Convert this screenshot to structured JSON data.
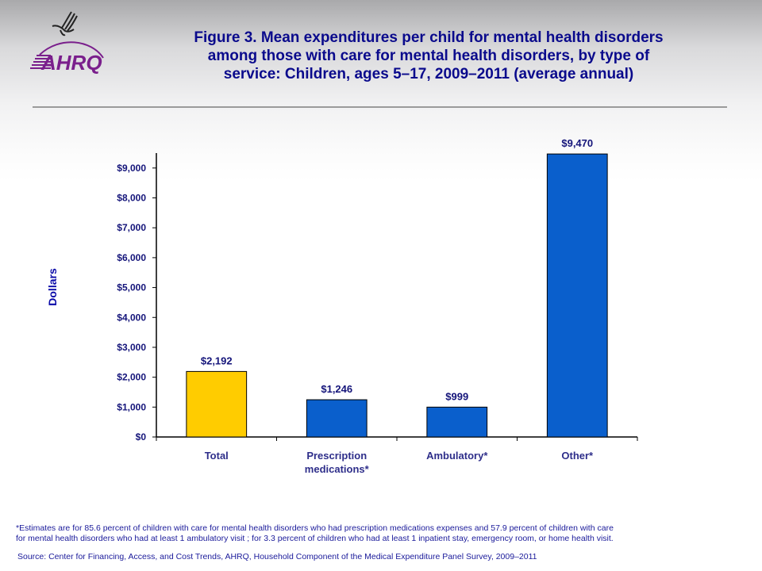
{
  "header": {
    "logo_text": "AHRQ",
    "hhs_icon": "hhs-eagle-icon"
  },
  "title_lines": [
    "Figure 3. Mean expenditures per child for mental health disorders",
    "among those with care for mental health disorders, by type of",
    "service: Children, ages 5–17, 2009–2011 (average annual)"
  ],
  "colors": {
    "title": "#0a0a8c",
    "total_bar": "#ffcc00",
    "service_bar": "#0a5fcc",
    "text": "#14147a"
  },
  "chart_data": {
    "type": "bar",
    "title": "Figure 3. Mean expenditures per child for mental health disorders among those with care for mental health disorders, by type of service: Children, ages 5–17, 2009–2011 (average annual)",
    "xlabel": "",
    "ylabel": "Dollars",
    "ylim": [
      0,
      9500
    ],
    "yticks": [
      0,
      1000,
      2000,
      3000,
      4000,
      5000,
      6000,
      7000,
      8000,
      9000
    ],
    "ytick_labels": [
      "$0",
      "$1,000",
      "$2,000",
      "$3,000",
      "$4,000",
      "$5,000",
      "$6,000",
      "$7,000",
      "$8,000",
      "$9,000"
    ],
    "grid": false,
    "legend": "none",
    "categories": [
      [
        "Total"
      ],
      [
        "Prescription",
        "medications*"
      ],
      [
        "Ambulatory*"
      ],
      [
        "Other*"
      ]
    ],
    "values": [
      2192,
      1246,
      999,
      9470
    ],
    "value_labels": [
      "$2,192",
      "$1,246",
      "$999",
      "$9,470"
    ],
    "bar_colors": [
      "#ffcc00",
      "#0a5fcc",
      "#0a5fcc",
      "#0a5fcc"
    ]
  },
  "footnotes": {
    "note_lines": [
      "*Estimates are for 85.6 percent of children with care for mental health disorders who had prescription medications expenses and 57.9 percent of children with care",
      "for mental health disorders who had at least 1 ambulatory visit ; for 3.3 percent of children who had at least 1 inpatient stay,  emergency room, or home health visit."
    ],
    "source": "Source: Center for Financing, Access, and Cost Trends, AHRQ, Household Component of the Medical Expenditure Panel Survey,  2009–2011"
  }
}
